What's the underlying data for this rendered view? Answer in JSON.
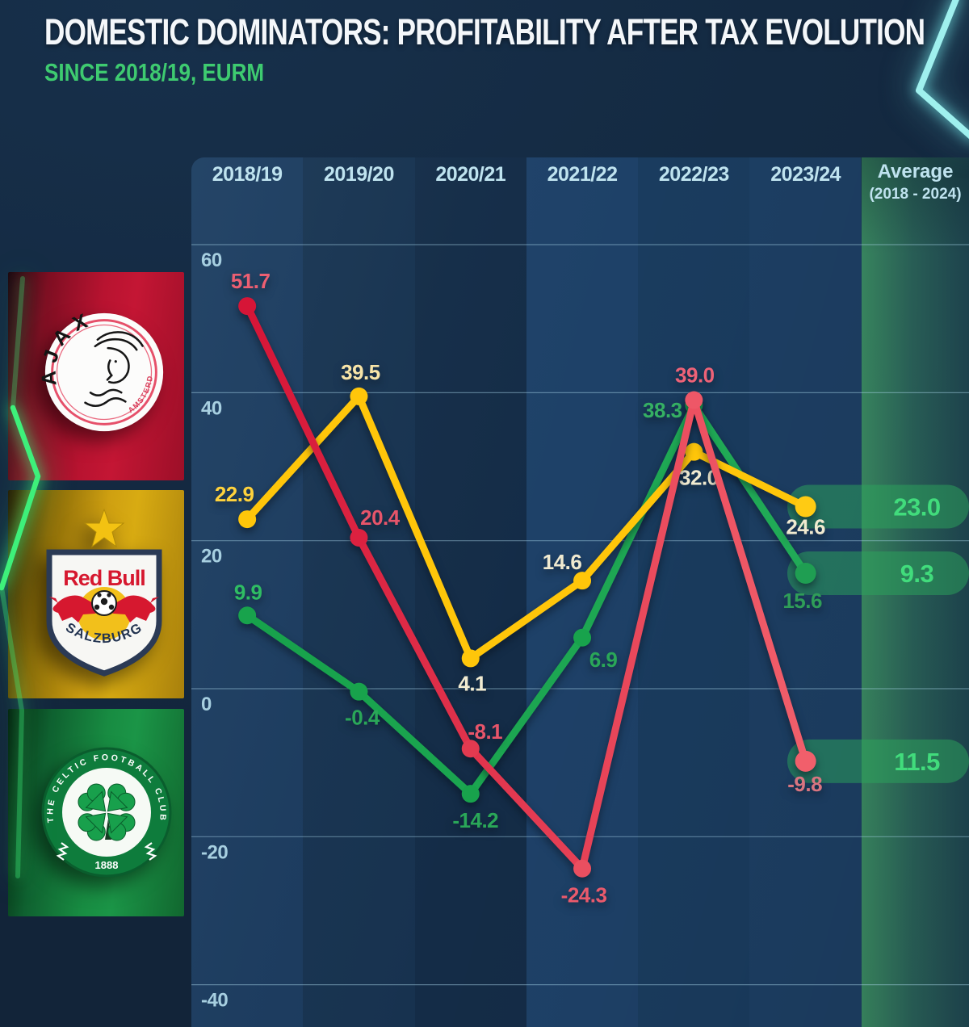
{
  "title": "DOMESTIC DOMINATORS: PROFITABILITY AFTER TAX EVOLUTION",
  "subtitle": "SINCE 2018/19, EURM",
  "palette": {
    "background": "#142a42",
    "title_color": "#f4f7fa",
    "subtitle_color": "#3ecb70",
    "header_color": "#bfe3ef",
    "axis_label_color": "#a7cfe0",
    "gridline_color": "rgba(170,215,235,0.45)",
    "average_value_color": "#41dc7c",
    "pill_color": "rgba(44,165,92,0.5)",
    "neon_green": "#3ef07a",
    "neon_cyan": "#9ff0ee"
  },
  "clubs": [
    {
      "icon": "ajax-crest",
      "arc_text": "AJAX",
      "bottom_text": "AMSTERDAM",
      "panel_color": "#c41634"
    },
    {
      "icon": "red-bull-salzburg-crest",
      "crest_text": "Red Bull",
      "arc_text": "SALZBURG",
      "panel_color": "#d8ab12"
    },
    {
      "icon": "celtic-crest",
      "arc_text": "THE CELTIC FOOTBALL CLUB",
      "year_text": "1888",
      "panel_color": "#1b9547"
    }
  ],
  "chart_data": {
    "type": "line",
    "title": "DOMESTIC DOMINATORS: PROFITABILITY AFTER TAX EVOLUTION",
    "subtitle": "SINCE 2018/19, EURM",
    "categories": [
      "2018/19",
      "2019/20",
      "2020/21",
      "2021/22",
      "2022/23",
      "2023/24"
    ],
    "average_column": {
      "label": "Average",
      "sublabel": "(2018 - 2024)"
    },
    "y_ticks": [
      60,
      40,
      20,
      0,
      -20,
      -40
    ],
    "ylim": [
      -47,
      66
    ],
    "grid": true,
    "legend_position": "left-logos",
    "column_colors": [
      "#1b3a5d",
      "#17324f",
      "#142c47",
      "#1e4168",
      "#1a3c5f",
      "#1d3f64"
    ],
    "average_column_gradient": [
      "#3a8a62",
      "#2a625a",
      "#1f4752"
    ],
    "series": [
      {
        "name": "Ajax",
        "values": [
          51.7,
          20.4,
          -8.1,
          -24.3,
          39.0,
          -9.8
        ],
        "average": 11.5,
        "color_start": "#d61537",
        "color_end": "#f15f6b",
        "marker_colors": [
          "#d61537",
          "#dc2140",
          "#e23a50",
          "#e94f60",
          "#ee5767",
          "#f15f6b"
        ],
        "label_colors": [
          "#ed5f72",
          "#e7556a",
          "#e7556a",
          "#ea5a6c",
          "#ee6277",
          "#d97580"
        ],
        "label_offsets": [
          [
            4,
            -22
          ],
          [
            26,
            -16
          ],
          [
            18,
            -12
          ],
          [
            2,
            42
          ],
          [
            1,
            -22
          ],
          [
            -1,
            37
          ]
        ]
      },
      {
        "name": "Red Bull Salzburg",
        "values": [
          22.9,
          39.5,
          4.1,
          14.6,
          32.0,
          24.6
        ],
        "average": 23.0,
        "color_start": "#ffc60a",
        "color_end": "#ffc60a",
        "marker_colors": [
          "#ffc60a",
          "#ffc60a",
          "#ffc60a",
          "#ffc60a",
          "#ffc60a",
          "#ffcb13"
        ],
        "label_colors": [
          "#ffd23c",
          "#f8e5a8",
          "#f2ecd2",
          "#f0ead0",
          "#f2ecd2",
          "#f0ead0"
        ],
        "label_offsets": [
          [
            -16,
            -22
          ],
          [
            2,
            -21
          ],
          [
            2,
            40
          ],
          [
            -25,
            -14
          ],
          [
            6,
            41
          ],
          [
            0,
            34
          ]
        ]
      },
      {
        "name": "Celtic",
        "values": [
          9.9,
          -0.4,
          -14.2,
          6.9,
          38.3,
          15.6
        ],
        "average": 9.3,
        "color_start": "#17a24b",
        "color_end": "#21aa57",
        "marker_colors": [
          "#18a34c",
          "#18a34c",
          "#18a34c",
          "#18a34c",
          "#1aa650",
          "#1f9e52"
        ],
        "label_colors": [
          "#2fbd63",
          "#2aa758",
          "#2aa758",
          "#2aa758",
          "#35b063",
          "#2f9d58"
        ],
        "label_offsets": [
          [
            1,
            -20
          ],
          [
            4,
            41
          ],
          [
            6,
            42
          ],
          [
            26,
            36
          ],
          [
            -39,
            15
          ],
          [
            -4,
            43
          ]
        ]
      }
    ]
  }
}
